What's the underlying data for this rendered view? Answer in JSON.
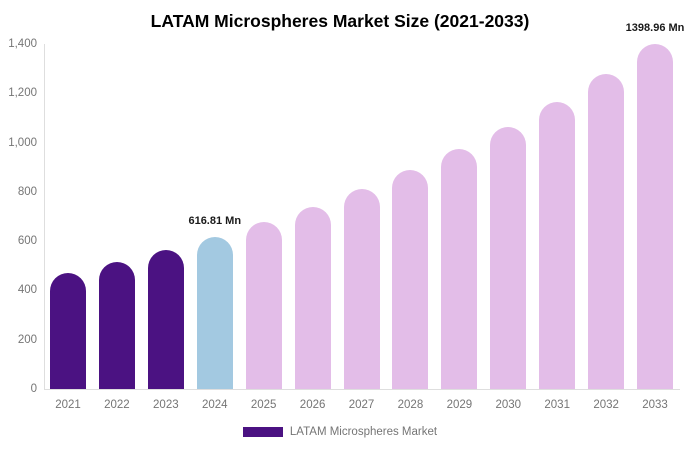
{
  "chart": {
    "title": "LATAM Microspheres Market Size (2021-2033)"
  },
  "legend": {
    "label": "LATAM Microspheres Market",
    "swatch_color": "#4B1282"
  },
  "colors": {
    "historical_bar": "#4B1282",
    "current_bar": "#A3C9E1",
    "forecast_bar": "#E3BDE8",
    "axis_line": "#DEDEDE",
    "axis_text": "#757575",
    "data_label_text": "#1A1A1A"
  },
  "chart_data": {
    "type": "bar",
    "title": "LATAM Microspheres Market Size (2021-2033)",
    "series_name": "LATAM Microspheres Market",
    "unit": "Mn",
    "categories": [
      "2021",
      "2022",
      "2023",
      "2024",
      "2025",
      "2026",
      "2027",
      "2028",
      "2029",
      "2030",
      "2031",
      "2032",
      "2033"
    ],
    "values": [
      470,
      515,
      564,
      616.81,
      676,
      740,
      810,
      888,
      972,
      1065,
      1166,
      1277,
      1398.96
    ],
    "roles": [
      "historical",
      "historical",
      "historical",
      "current",
      "forecast",
      "forecast",
      "forecast",
      "forecast",
      "forecast",
      "forecast",
      "forecast",
      "forecast",
      "forecast"
    ],
    "point_labels": [
      {
        "index": 3,
        "text": "616.81 Mn"
      },
      {
        "index": 12,
        "text": "1398.96 Mn"
      }
    ],
    "xlabel": "",
    "ylabel": "",
    "ylim": [
      0,
      1400
    ],
    "ytick_values": [
      0,
      200,
      400,
      600,
      800,
      1000,
      1200,
      1400
    ],
    "ytick_labels": [
      "0",
      "200",
      "400",
      "600",
      "800",
      "1,000",
      "1,200",
      "1,400"
    ],
    "grid": false,
    "legend_position": "bottom"
  }
}
